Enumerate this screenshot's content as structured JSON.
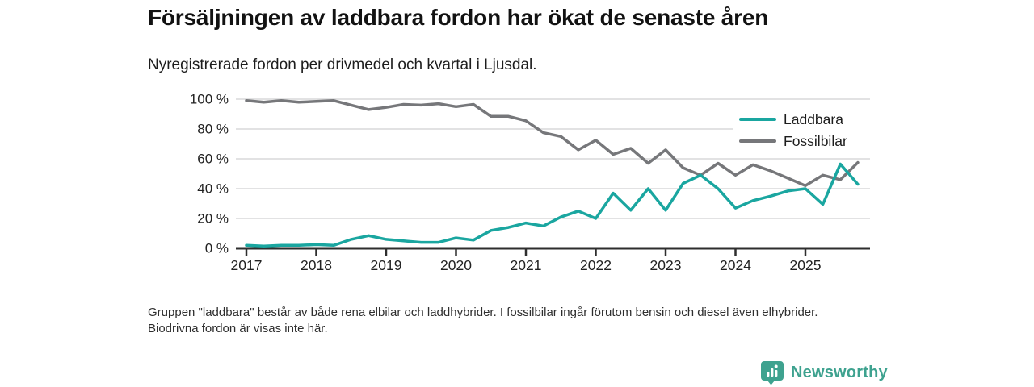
{
  "header": {
    "title": "Försäljningen av laddbara fordon har ökat de senaste åren",
    "subtitle": "Nyregistrerade fordon per drivmedel och kvartal i Ljusdal."
  },
  "chart_data": {
    "type": "line",
    "title": "Nyregistrerade fordon per drivmedel och kvartal i Ljusdal",
    "x_unit": "quarter",
    "x_tick_labels": [
      "2017",
      "2018",
      "2019",
      "2020",
      "2021",
      "2022",
      "2023",
      "2024",
      "2025"
    ],
    "y_ticks": [
      0,
      20,
      40,
      60,
      80,
      100
    ],
    "y_tick_suffix": " %",
    "ylim": [
      0,
      100
    ],
    "grid": true,
    "legend_position": "top-right",
    "quarters": [
      "2017Q1",
      "2017Q2",
      "2017Q3",
      "2017Q4",
      "2018Q1",
      "2018Q2",
      "2018Q3",
      "2018Q4",
      "2019Q1",
      "2019Q2",
      "2019Q3",
      "2019Q4",
      "2020Q1",
      "2020Q2",
      "2020Q3",
      "2020Q4",
      "2021Q1",
      "2021Q2",
      "2021Q3",
      "2021Q4",
      "2022Q1",
      "2022Q2",
      "2022Q3",
      "2022Q4",
      "2023Q1",
      "2023Q2",
      "2023Q3",
      "2023Q4",
      "2024Q1",
      "2024Q2",
      "2024Q3",
      "2024Q4",
      "2025Q1",
      "2025Q2",
      "2025Q3",
      "2025Q4"
    ],
    "series": [
      {
        "name": "Laddbara",
        "color": "#1aa6a0",
        "values": [
          2,
          1.5,
          2,
          2,
          2.5,
          2,
          6,
          8.5,
          6,
          5,
          4,
          4,
          7,
          5.5,
          12,
          14,
          17,
          15,
          21,
          25,
          20,
          37,
          25.5,
          40,
          25.5,
          43.5,
          49,
          40,
          27,
          32,
          35,
          38.5,
          40,
          29.5,
          56.5,
          43
        ]
      },
      {
        "name": "Fossilbilar",
        "color": "#76777a",
        "values": [
          99,
          98,
          99,
          98,
          98.5,
          99,
          96,
          93,
          94.5,
          96.5,
          96,
          97,
          95,
          96.5,
          88.5,
          88.5,
          85.5,
          77.5,
          75,
          66,
          72.5,
          63,
          67,
          57,
          66,
          54,
          49,
          57,
          49,
          56,
          52,
          47,
          42,
          49,
          46,
          57.5
        ]
      }
    ]
  },
  "footnote": "Gruppen \"laddbara\" består av både rena elbilar och laddhybrider. I fossilbilar ingår förutom bensin och diesel även elhybrider. Biodrivna fordon är visas inte här.",
  "branding": {
    "logo_text": "Newsworthy",
    "logo_color": "#3ea28f",
    "logo_icon": "bar-chart-pin-icon"
  }
}
